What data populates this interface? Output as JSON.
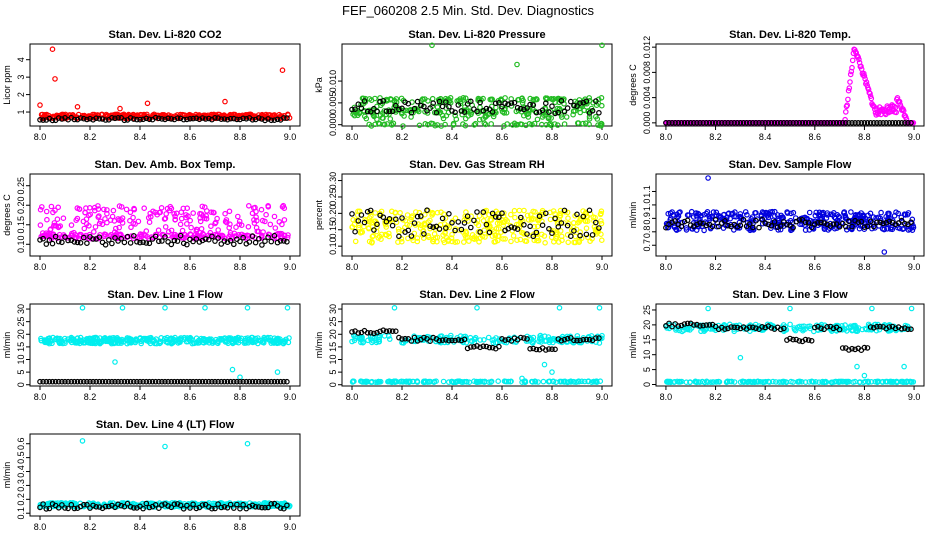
{
  "figure_title": "FEF_060208  2.5 Min. Std. Dev. Diagnostics",
  "colors": {
    "red": "#ff0000",
    "green": "#22bb22",
    "magenta": "#ff00ff",
    "yellow": "#ffff00",
    "blue": "#0000dd",
    "cyan": "#00eeee",
    "black": "#000000"
  },
  "chart_data": [
    {
      "type": "scatter",
      "title": "Stan. Dev. Li-820 CO2",
      "ylabel": "Licor ppm",
      "xlim": [
        7.96,
        9.04
      ],
      "ylim": [
        0.2,
        4.9
      ],
      "xticks": [
        "8.0",
        "8.2",
        "8.4",
        "8.6",
        "8.8",
        "9.0"
      ],
      "xtick_values": [
        8.0,
        8.2,
        8.4,
        8.6,
        8.8,
        9.0
      ],
      "yticks": [
        "1",
        "2",
        "3",
        "4"
      ],
      "ytick_values": [
        1,
        2,
        3,
        4
      ],
      "color": "#ff0000",
      "base": 0.75,
      "spread": 0.12,
      "seed": 11,
      "extra": [
        [
          8.05,
          4.6
        ],
        [
          8.06,
          2.9
        ],
        [
          8.97,
          3.4
        ],
        [
          8.0,
          1.4
        ],
        [
          8.43,
          1.5
        ],
        [
          8.74,
          1.6
        ],
        [
          8.32,
          1.2
        ],
        [
          8.15,
          1.3
        ]
      ],
      "black": [
        {
          "base": 0.6,
          "spread": 0.08
        }
      ]
    },
    {
      "type": "scatter",
      "title": "Stan. Dev. Li-820 Pressure",
      "ylabel": "kPa",
      "xlim": [
        7.96,
        9.04
      ],
      "ylim": [
        -0.0003,
        0.0185
      ],
      "xticks": [
        "8.0",
        "8.2",
        "8.4",
        "8.6",
        "8.8",
        "9.0"
      ],
      "xtick_values": [
        8.0,
        8.2,
        8.4,
        8.6,
        8.8,
        9.0
      ],
      "yticks": [
        "0.000",
        "0.005",
        "0.010"
      ],
      "ytick_values": [
        0,
        0.005,
        0.01
      ],
      "color": "#22bb22",
      "base": 0.0035,
      "spread": 0.0025,
      "seed": 22,
      "bands": [
        0.0,
        0.003,
        0.0058
      ],
      "extra": [
        [
          8.32,
          0.0182
        ],
        [
          8.66,
          0.0138
        ],
        [
          9.0,
          0.0182
        ]
      ],
      "black": [
        {
          "base": 0.004,
          "spread": 0.0015
        }
      ]
    },
    {
      "type": "scatter",
      "title": "Stan. Dev. Li-820 Temp.",
      "ylabel": "degrees C",
      "xlim": [
        7.96,
        9.04
      ],
      "ylim": [
        -0.0005,
        0.0125
      ],
      "xticks": [
        "8.0",
        "8.2",
        "8.4",
        "8.6",
        "8.8",
        "9.0"
      ],
      "xtick_values": [
        8.0,
        8.2,
        8.4,
        8.6,
        8.8,
        9.0
      ],
      "yticks": [
        "0.000",
        "0.004",
        "0.008",
        "0.012"
      ],
      "ytick_values": [
        0,
        0.004,
        0.008,
        0.012
      ],
      "color": "#ff00ff",
      "seed": 33,
      "shape": "temp",
      "black": [
        {
          "base": 0.0,
          "spread": 0.0
        }
      ]
    },
    {
      "type": "scatter",
      "title": "Stan. Dev. Amb. Box Temp.",
      "ylabel": "degrees C",
      "xlim": [
        7.96,
        9.04
      ],
      "ylim": [
        0.07,
        0.28
      ],
      "xticks": [
        "8.0",
        "8.2",
        "8.4",
        "8.6",
        "8.8",
        "9.0"
      ],
      "xtick_values": [
        8.0,
        8.2,
        8.4,
        8.6,
        8.8,
        9.0
      ],
      "yticks": [
        "0.10",
        "0.15",
        "0.20",
        "0.25"
      ],
      "ytick_values": [
        0.1,
        0.15,
        0.2,
        0.25
      ],
      "color": "#ff00ff",
      "base": 0.16,
      "spread": 0.04,
      "seed": 44,
      "bands": [
        0.12
      ],
      "black": [
        {
          "base": 0.11,
          "spread": 0.012
        }
      ]
    },
    {
      "type": "scatter",
      "title": "Stan. Dev. Gas Stream RH",
      "ylabel": "percent",
      "xlim": [
        7.96,
        9.04
      ],
      "ylim": [
        0.07,
        0.32
      ],
      "xticks": [
        "8.0",
        "8.2",
        "8.4",
        "8.6",
        "8.8",
        "9.0"
      ],
      "xtick_values": [
        8.0,
        8.2,
        8.4,
        8.6,
        8.8,
        9.0
      ],
      "yticks": [
        "0.10",
        "0.15",
        "0.20",
        "0.25",
        "0.30"
      ],
      "ytick_values": [
        0.1,
        0.15,
        0.2,
        0.25,
        0.3
      ],
      "color": "#ffff00",
      "base": 0.16,
      "spread": 0.05,
      "seed": 55,
      "black": [
        {
          "base": 0.17,
          "spread": 0.04
        }
      ]
    },
    {
      "type": "scatter",
      "title": "Stan. Dev. Sample Flow",
      "ylabel": "ml/min",
      "xlim": [
        7.96,
        9.04
      ],
      "ylim": [
        0.62,
        1.23
      ],
      "xticks": [
        "8.0",
        "8.2",
        "8.4",
        "8.6",
        "8.8",
        "9.0"
      ],
      "xtick_values": [
        8.0,
        8.2,
        8.4,
        8.6,
        8.8,
        9.0
      ],
      "yticks": [
        "0.7",
        "0.8",
        "0.9",
        "1.0",
        "1.1"
      ],
      "ytick_values": [
        0.7,
        0.8,
        0.9,
        1.0,
        1.1
      ],
      "color": "#0000dd",
      "base": 0.88,
      "spread": 0.07,
      "seed": 66,
      "extra": [
        [
          8.17,
          1.2
        ],
        [
          8.88,
          0.65
        ]
      ],
      "black": [
        {
          "base": 0.86,
          "spread": 0.03
        }
      ]
    },
    {
      "type": "scatter",
      "title": "Stan. Dev. Line 1 Flow",
      "ylabel": "ml/min",
      "xlim": [
        7.96,
        9.04
      ],
      "ylim": [
        -0.5,
        32
      ],
      "xticks": [
        "8.0",
        "8.2",
        "8.4",
        "8.6",
        "8.8",
        "9.0"
      ],
      "xtick_values": [
        8.0,
        8.2,
        8.4,
        8.6,
        8.8,
        9.0
      ],
      "yticks": [
        "0",
        "5",
        "10",
        "15",
        "20",
        "25",
        "30"
      ],
      "ytick_values": [
        0,
        5,
        10,
        15,
        20,
        25,
        30
      ],
      "color": "#00eeee",
      "base": 17.5,
      "spread": 1.2,
      "seed": 77,
      "extra": [
        [
          8.17,
          30.5
        ],
        [
          8.33,
          30.5
        ],
        [
          8.5,
          30.5
        ],
        [
          8.66,
          30.5
        ],
        [
          8.83,
          30.5
        ],
        [
          8.99,
          30.5
        ],
        [
          8.3,
          9
        ],
        [
          8.77,
          6
        ],
        [
          8.8,
          3
        ],
        [
          8.95,
          5
        ]
      ],
      "black": [
        {
          "base": 1.2,
          "spread": 0.0
        }
      ]
    },
    {
      "type": "scatter",
      "title": "Stan. Dev. Line 2 Flow",
      "ylabel": "ml/min",
      "xlim": [
        7.96,
        9.04
      ],
      "ylim": [
        -0.5,
        32
      ],
      "xticks": [
        "8.0",
        "8.2",
        "8.4",
        "8.6",
        "8.8",
        "9.0"
      ],
      "xtick_values": [
        8.0,
        8.2,
        8.4,
        8.6,
        8.8,
        9.0
      ],
      "yticks": [
        "0",
        "5",
        "10",
        "15",
        "20",
        "25",
        "30"
      ],
      "ytick_values": [
        0,
        5,
        10,
        15,
        20,
        25,
        30
      ],
      "color": "#00eeee",
      "base": 18,
      "spread": 1.5,
      "seed": 88,
      "bands": [
        1.2
      ],
      "extra": [
        [
          8.17,
          30.5
        ],
        [
          8.5,
          30.5
        ],
        [
          8.83,
          30.5
        ],
        [
          8.99,
          30.5
        ],
        [
          8.77,
          8
        ],
        [
          8.8,
          5
        ],
        [
          8.68,
          2.5
        ]
      ],
      "black": [
        {
          "base": 18,
          "spread": 1.0,
          "shape": "line2"
        }
      ]
    },
    {
      "type": "scatter",
      "title": "Stan. Dev. Line 3 Flow",
      "ylabel": "ml/min",
      "xlim": [
        7.96,
        9.04
      ],
      "ylim": [
        -0.5,
        27
      ],
      "xticks": [
        "8.0",
        "8.2",
        "8.4",
        "8.6",
        "8.8",
        "9.0"
      ],
      "xtick_values": [
        8.0,
        8.2,
        8.4,
        8.6,
        8.8,
        9.0
      ],
      "yticks": [
        "0",
        "5",
        "10",
        "15",
        "20",
        "25"
      ],
      "ytick_values": [
        0,
        5,
        10,
        15,
        20,
        25
      ],
      "color": "#00eeee",
      "base": 19,
      "spread": 1.2,
      "seed": 99,
      "bands": [
        0.9
      ],
      "extra": [
        [
          8.17,
          25.5
        ],
        [
          8.5,
          25.5
        ],
        [
          8.83,
          25.5
        ],
        [
          8.99,
          25.5
        ],
        [
          8.3,
          9
        ],
        [
          8.77,
          6
        ],
        [
          8.8,
          3
        ],
        [
          8.96,
          6
        ]
      ],
      "black": [
        {
          "base": 19,
          "spread": 0.6,
          "shape": "line3"
        }
      ]
    },
    {
      "type": "scatter",
      "title": "Stan. Dev. Line 4 (LT) Flow",
      "ylabel": "ml/min",
      "xlim": [
        7.96,
        9.04
      ],
      "ylim": [
        0.08,
        0.67
      ],
      "xticks": [
        "8.0",
        "8.2",
        "8.4",
        "8.6",
        "8.8",
        "9.0"
      ],
      "xtick_values": [
        8.0,
        8.2,
        8.4,
        8.6,
        8.8,
        9.0
      ],
      "yticks": [
        "0.1",
        "0.2",
        "0.3",
        "0.4",
        "0.5",
        "0.6"
      ],
      "ytick_values": [
        0.1,
        0.2,
        0.3,
        0.4,
        0.5,
        0.6
      ],
      "color": "#00eeee",
      "base": 0.16,
      "spread": 0.015,
      "seed": 111,
      "extra": [
        [
          8.17,
          0.62
        ],
        [
          8.5,
          0.58
        ],
        [
          8.83,
          0.6
        ]
      ],
      "black": [
        {
          "base": 0.15,
          "spread": 0.02
        }
      ]
    }
  ]
}
